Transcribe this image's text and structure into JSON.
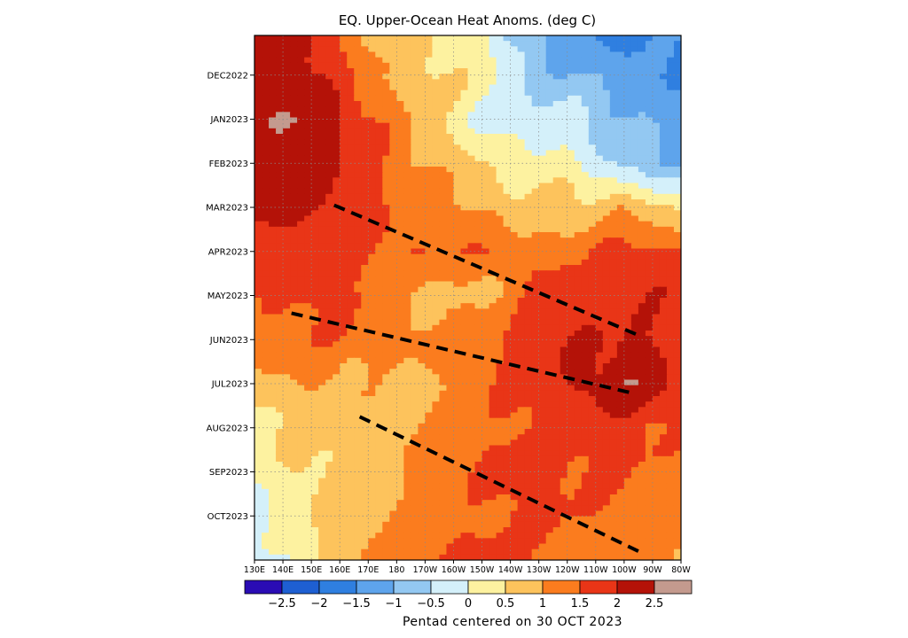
{
  "chart_data": {
    "type": "heatmap",
    "title": "EQ. Upper-Ocean Heat Anoms. (deg C)",
    "footer": "Pentad centered on 30 OCT 2023",
    "xlabel": "",
    "ylabel": "",
    "x_axis": {
      "tick_labels": [
        "130E",
        "140E",
        "150E",
        "160E",
        "170E",
        "180",
        "170W",
        "160W",
        "150W",
        "140W",
        "130W",
        "120W",
        "110W",
        "100W",
        "90W",
        "80W"
      ],
      "lon_east": [
        130,
        140,
        150,
        160,
        170,
        180,
        190,
        200,
        210,
        220,
        230,
        240,
        250,
        260,
        270,
        280
      ]
    },
    "y_axis": {
      "tick_labels": [
        "DEC2022",
        "JAN2023",
        "FEB2023",
        "MAR2023",
        "APR2023",
        "MAY2023",
        "JUN2023",
        "JUL2023",
        "AUG2023",
        "SEP2023",
        "OCT2023"
      ],
      "month_index": [
        1,
        2,
        3,
        4,
        5,
        6,
        7,
        8,
        9,
        10,
        11
      ],
      "range": [
        0.1,
        12.0
      ],
      "direction": "time increases downward"
    },
    "colorbar": {
      "levels": [
        "-2.5",
        "-2",
        "-1.5",
        "-1",
        "-0.5",
        "0",
        "0.5",
        "1",
        "1.5",
        "2",
        "2.5"
      ],
      "colors": [
        "#2a0cb4",
        "#1e5fd2",
        "#2f7fe0",
        "#5ea4ec",
        "#93c8f2",
        "#d4f0fa",
        "#fdf2a0",
        "#fdc35c",
        "#fb7c1e",
        "#e93517",
        "#b41208",
        "#c49a8e"
      ]
    },
    "grid": "dotted",
    "anomaly_lon_east": [
      130,
      140,
      150,
      160,
      170,
      180,
      190,
      200,
      210,
      220,
      230,
      240,
      250,
      260,
      270,
      280
    ],
    "anomaly_month_index": [
      0.2,
      1,
      2,
      3,
      4,
      5,
      6,
      7,
      8,
      9,
      10,
      11,
      12
    ],
    "values": [
      [
        2.3,
        2.3,
        2.1,
        1.5,
        1.0,
        0.8,
        0.6,
        0.4,
        0.2,
        -0.5,
        -1.1,
        -1.3,
        -1.5,
        -1.6,
        -1.6,
        -1.6
      ],
      [
        2.4,
        2.2,
        2.2,
        1.6,
        1.2,
        0.8,
        0.7,
        0.5,
        0.3,
        -0.3,
        -0.8,
        -0.9,
        -1.1,
        -1.3,
        -1.5,
        -1.5
      ],
      [
        2.1,
        2.6,
        2.4,
        2.2,
        1.6,
        1.2,
        0.7,
        0.3,
        -0.1,
        -0.3,
        -0.4,
        -0.2,
        -0.6,
        -0.9,
        -1.1,
        -1.2
      ],
      [
        2.4,
        2.4,
        2.2,
        2.0,
        1.7,
        1.3,
        1.0,
        0.8,
        0.5,
        0.1,
        0.3,
        0.2,
        -0.4,
        -0.7,
        -0.8,
        -1.0
      ],
      [
        2.1,
        2.2,
        2.1,
        2.0,
        1.7,
        1.4,
        1.3,
        1.2,
        1.0,
        0.7,
        0.7,
        0.6,
        0.8,
        1.0,
        0.6,
        0.3
      ],
      [
        1.8,
        1.7,
        1.7,
        1.6,
        1.6,
        1.5,
        1.5,
        1.4,
        1.4,
        1.3,
        1.2,
        1.4,
        1.4,
        1.6,
        1.7,
        1.6
      ],
      [
        1.4,
        1.6,
        1.7,
        1.7,
        1.5,
        0.9,
        0.8,
        0.9,
        0.8,
        1.2,
        1.6,
        1.7,
        1.5,
        1.8,
        1.9,
        1.8
      ],
      [
        1.2,
        1.3,
        1.4,
        1.4,
        1.3,
        1.2,
        1.2,
        1.3,
        1.5,
        1.6,
        1.8,
        1.9,
        2.0,
        2.1,
        2.0,
        1.8
      ],
      [
        0.7,
        0.9,
        1.1,
        1.0,
        0.9,
        0.7,
        0.8,
        1.1,
        1.3,
        1.6,
        1.8,
        2.0,
        2.2,
        2.4,
        2.3,
        1.9
      ],
      [
        0.3,
        0.6,
        0.6,
        0.7,
        0.7,
        0.8,
        1.0,
        1.2,
        1.4,
        1.5,
        1.7,
        1.7,
        1.8,
        1.8,
        1.6,
        1.4
      ],
      [
        0.1,
        0.4,
        0.6,
        0.7,
        0.7,
        0.9,
        1.1,
        1.3,
        1.5,
        1.7,
        1.9,
        1.6,
        1.6,
        1.5,
        1.4,
        1.2
      ],
      [
        -0.2,
        0.1,
        0.5,
        0.7,
        0.9,
        1.1,
        1.2,
        1.3,
        1.4,
        1.6,
        1.6,
        1.5,
        1.4,
        1.3,
        1.2,
        1.1
      ],
      [
        -0.3,
        0.0,
        0.5,
        0.8,
        1.1,
        1.3,
        1.5,
        1.7,
        1.8,
        1.6,
        1.4,
        1.4,
        1.4,
        1.3,
        1.2,
        1.1
      ]
    ],
    "annotations": [
      {
        "type": "dashed-line",
        "from": {
          "lon_east": 158,
          "month_index": 3.95
        },
        "to": {
          "lon_east": 265,
          "month_index": 6.9
        }
      },
      {
        "type": "dashed-line",
        "from": {
          "lon_east": 143,
          "month_index": 6.4
        },
        "to": {
          "lon_east": 262,
          "month_index": 8.2
        }
      },
      {
        "type": "dashed-line",
        "from": {
          "lon_east": 167,
          "month_index": 8.75
        },
        "to": {
          "lon_east": 265,
          "month_index": 11.8
        }
      }
    ]
  }
}
